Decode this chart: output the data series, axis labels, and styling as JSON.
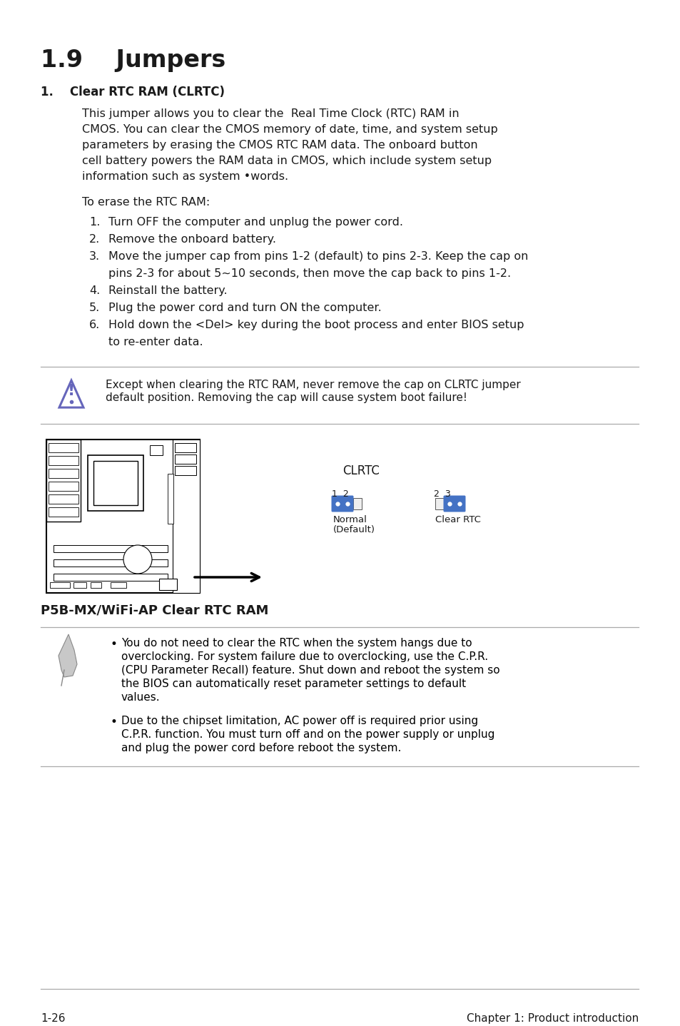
{
  "bg_color": "#ffffff",
  "title": "1.9    Jumpers",
  "section_title": "1.    Clear RTC RAM (CLRTC)",
  "body_text": [
    "This jumper allows you to clear the  Real Time Clock (RTC) RAM in",
    "CMOS. You can clear the CMOS memory of date, time, and system setup",
    "parameters by erasing the CMOS RTC RAM data. The onboard button",
    "cell battery powers the RAM data in CMOS, which include system setup",
    "information such as system •words."
  ],
  "erase_title": "To erase the RTC RAM:",
  "steps": [
    [
      "1.",
      "Turn OFF the computer and unplug the power cord."
    ],
    [
      "2.",
      "Remove the onboard battery."
    ],
    [
      "3.",
      "Move the jumper cap from pins 1-2 (default) to pins 2-3. Keep the cap on",
      "pins 2-3 for about 5~10 seconds, then move the cap back to pins 1-2."
    ],
    [
      "4.",
      "Reinstall the battery."
    ],
    [
      "5.",
      "Plug the power cord and turn ON the computer."
    ],
    [
      "6.",
      "Hold down the <Del> key during the boot process and enter BIOS setup",
      "to re-enter data."
    ]
  ],
  "warning_text_1": "Except when clearing the RTC RAM, never remove the cap on CLRTC jumper",
  "warning_text_2": "default position. Removing the cap will cause system boot failure!",
  "diagram_caption": "P5B-MX/WiFi-AP Clear RTC RAM",
  "clrtc_label": "CLRTC",
  "normal_label": "1  2",
  "clear_label": "2  3",
  "normal_sublabel_1": "Normal",
  "normal_sublabel_2": "(Default)",
  "clear_sublabel": "Clear RTC",
  "note_bullets": [
    "You do not need to clear the RTC when the system hangs due to overclocking. For system failure due to overclocking, use the C.P.R. (CPU Parameter Recall) feature. Shut down and reboot the system so the BIOS can automatically reset parameter settings to default values.",
    "Due to the chipset limitation, AC power off is required prior using C.P.R. function. You must turn off and on the power supply or unplug and plug the power cord before reboot the system."
  ],
  "footer_left": "1-26",
  "footer_right": "Chapter 1: Product introduction",
  "jumper_blue": "#4472C4",
  "warning_line_color": "#aaaaaa",
  "triangle_color": "#6666bb"
}
